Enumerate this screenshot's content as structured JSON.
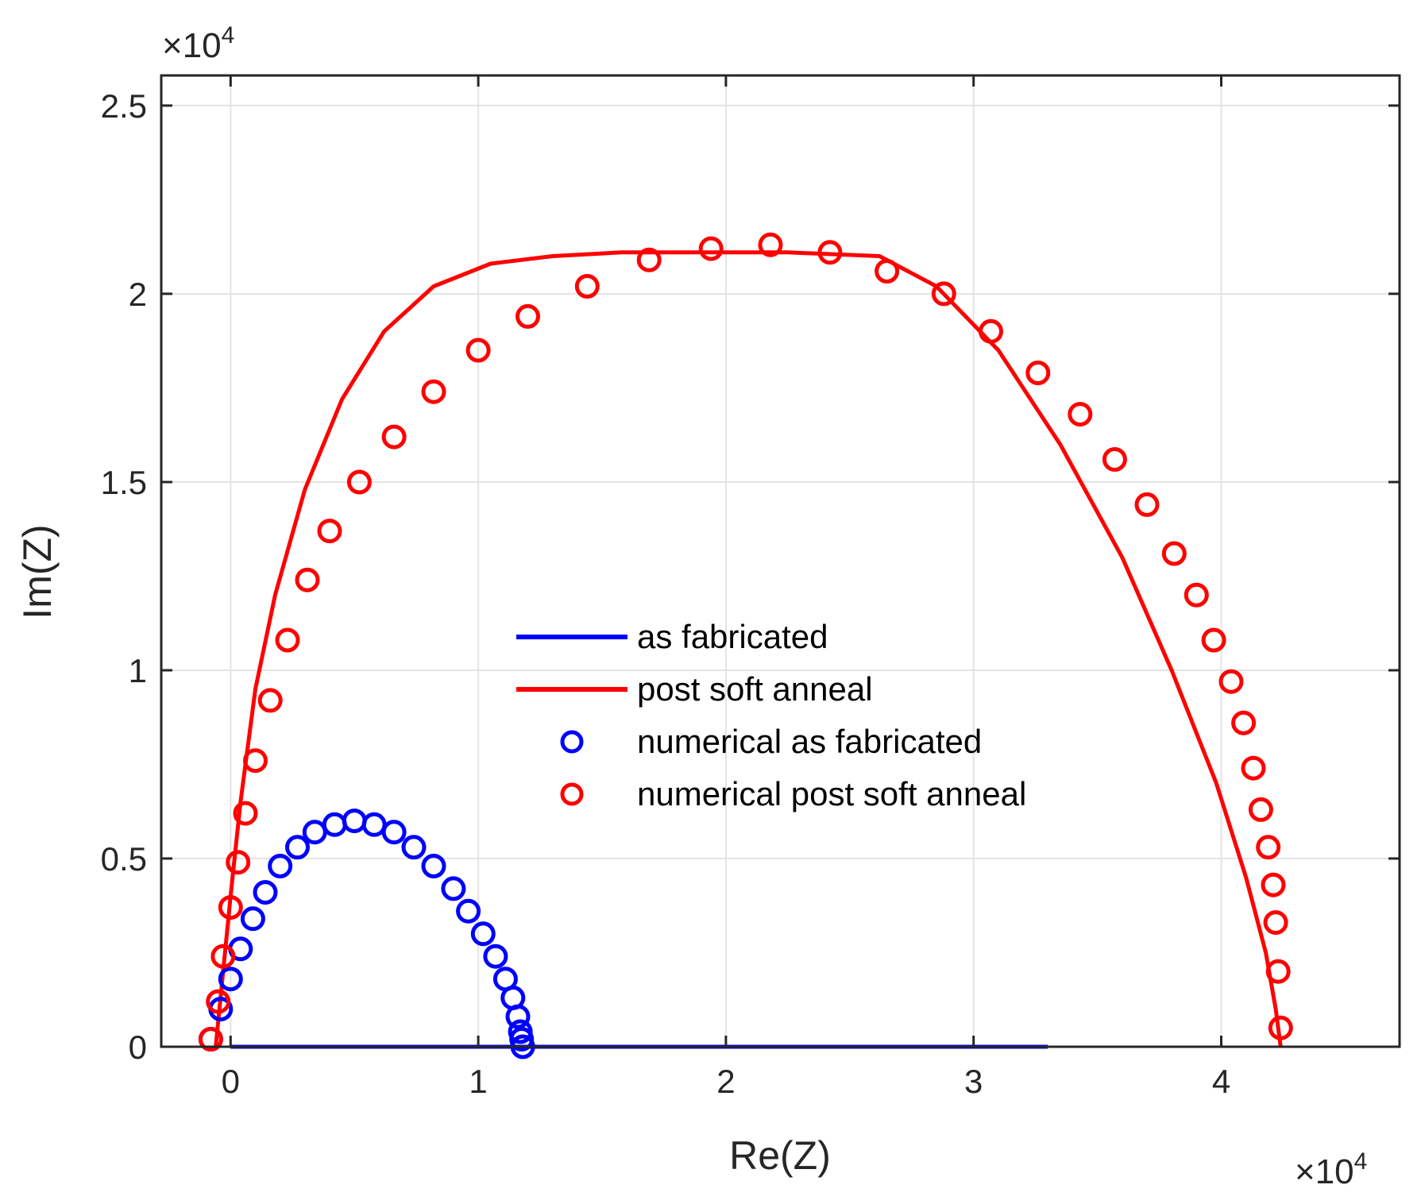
{
  "chart_data": {
    "type": "line",
    "title": "",
    "xlabel": "Re(Z)",
    "ylabel": "Im(Z)",
    "x_multiplier_label": "×10",
    "x_multiplier_exp": "4",
    "y_multiplier_label": "×10",
    "y_multiplier_exp": "4",
    "xlim": [
      -0.28,
      4.72
    ],
    "ylim": [
      0,
      2.58
    ],
    "x_ticks": [
      0,
      1,
      2,
      3,
      4
    ],
    "x_tick_labels": [
      "0",
      "1",
      "2",
      "3",
      "4"
    ],
    "y_ticks": [
      0,
      0.5,
      1,
      1.5,
      2,
      2.5
    ],
    "y_tick_labels": [
      "0",
      "0.5",
      "1",
      "1.5",
      "2",
      "2.5"
    ],
    "grid": true,
    "legend_position": "center",
    "colors": {
      "blue": "#0000ff",
      "red": "#ff0000",
      "axis": "#262626",
      "grid": "#e3e3e3"
    },
    "series": [
      {
        "name": "as fabricated",
        "kind": "line",
        "color": "#0000ff",
        "x": [
          0.0,
          0.05,
          0.1,
          0.2,
          0.3,
          0.5,
          0.7,
          0.9,
          1.1,
          1.3,
          1.5,
          1.7,
          1.9,
          2.1,
          2.3,
          2.5,
          2.7,
          2.9,
          3.1,
          3.3
        ],
        "y": [
          0.0,
          0.0,
          0.0,
          0.0,
          0.0,
          0.0,
          0.0,
          0.0,
          0.0,
          0.0,
          0.0,
          0.0,
          0.0,
          0.0,
          0.0,
          0.0,
          0.0,
          0.0,
          0.0,
          0.0
        ]
      },
      {
        "name": "post soft anneal",
        "kind": "line",
        "color": "#ff0000",
        "x": [
          -0.06,
          -0.03,
          0.0,
          0.04,
          0.1,
          0.18,
          0.3,
          0.45,
          0.62,
          0.82,
          1.05,
          1.3,
          1.58,
          1.9,
          2.25,
          2.62,
          2.85,
          3.1,
          3.35,
          3.6,
          3.8,
          3.98,
          4.1,
          4.18,
          4.22,
          4.24
        ],
        "y": [
          0.0,
          0.2,
          0.4,
          0.65,
          0.95,
          1.2,
          1.48,
          1.72,
          1.9,
          2.02,
          2.08,
          2.1,
          2.11,
          2.11,
          2.11,
          2.1,
          2.02,
          1.85,
          1.6,
          1.3,
          1.0,
          0.7,
          0.45,
          0.25,
          0.1,
          0.0
        ]
      },
      {
        "name": "numerical as fabricated",
        "kind": "markers",
        "color": "#0000ff",
        "x": [
          -0.08,
          -0.04,
          0.0,
          0.04,
          0.09,
          0.14,
          0.2,
          0.27,
          0.34,
          0.42,
          0.5,
          0.58,
          0.66,
          0.74,
          0.82,
          0.9,
          0.96,
          1.02,
          1.07,
          1.11,
          1.14,
          1.16,
          1.17,
          1.175,
          1.18
        ],
        "y": [
          0.02,
          0.1,
          0.18,
          0.26,
          0.34,
          0.41,
          0.48,
          0.53,
          0.57,
          0.59,
          0.6,
          0.59,
          0.57,
          0.53,
          0.48,
          0.42,
          0.36,
          0.3,
          0.24,
          0.18,
          0.13,
          0.08,
          0.04,
          0.02,
          0.0
        ]
      },
      {
        "name": "numerical post soft anneal",
        "kind": "markers",
        "color": "#ff0000",
        "x": [
          -0.08,
          -0.05,
          -0.03,
          0.0,
          0.03,
          0.06,
          0.1,
          0.16,
          0.23,
          0.31,
          0.4,
          0.52,
          0.66,
          0.82,
          1.0,
          1.2,
          1.44,
          1.69,
          1.94,
          2.18,
          2.42,
          2.65,
          2.88,
          3.07,
          3.26,
          3.43,
          3.57,
          3.7,
          3.81,
          3.9,
          3.97,
          4.04,
          4.09,
          4.13,
          4.16,
          4.19,
          4.21,
          4.22,
          4.23,
          4.24
        ],
        "y": [
          0.02,
          0.12,
          0.24,
          0.37,
          0.49,
          0.62,
          0.76,
          0.92,
          1.08,
          1.24,
          1.37,
          1.5,
          1.62,
          1.74,
          1.85,
          1.94,
          2.02,
          2.09,
          2.12,
          2.13,
          2.11,
          2.06,
          2.0,
          1.9,
          1.79,
          1.68,
          1.56,
          1.44,
          1.31,
          1.2,
          1.08,
          0.97,
          0.86,
          0.74,
          0.63,
          0.53,
          0.43,
          0.33,
          0.2,
          0.05
        ]
      }
    ]
  }
}
